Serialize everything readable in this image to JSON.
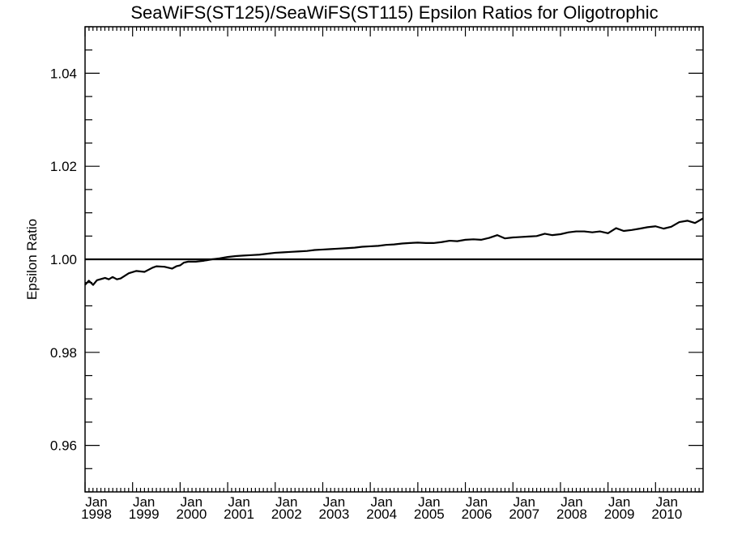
{
  "chart_data": {
    "type": "line",
    "title": "SeaWiFS(ST125)/SeaWiFS(ST115)  Epsilon Ratios for Oligotrophic",
    "xlabel": "",
    "ylabel": "Epsilon Ratio",
    "xlim": [
      1998.0,
      2011.0
    ],
    "ylim": [
      0.95,
      1.05
    ],
    "y_ticks": [
      0.96,
      0.98,
      1.0,
      1.02,
      1.04
    ],
    "y_tick_labels": [
      "0.96",
      "0.98",
      "1.00",
      "1.02",
      "1.04"
    ],
    "x_ticks": [
      1998,
      1999,
      2000,
      2001,
      2002,
      2003,
      2004,
      2005,
      2006,
      2007,
      2008,
      2009,
      2010
    ],
    "x_tick_labels": [
      [
        "Jan",
        "1998"
      ],
      [
        "Jan",
        "1999"
      ],
      [
        "Jan",
        "2000"
      ],
      [
        "Jan",
        "2001"
      ],
      [
        "Jan",
        "2002"
      ],
      [
        "Jan",
        "2003"
      ],
      [
        "Jan",
        "2004"
      ],
      [
        "Jan",
        "2005"
      ],
      [
        "Jan",
        "2006"
      ],
      [
        "Jan",
        "2007"
      ],
      [
        "Jan",
        "2008"
      ],
      [
        "Jan",
        "2009"
      ],
      [
        "Jan",
        "2010"
      ]
    ],
    "reference_line": 1.0,
    "grid": false,
    "series": [
      {
        "x": [
          1998.0,
          1998.08,
          1998.17,
          1998.25,
          1998.42,
          1998.5,
          1998.58,
          1998.67,
          1998.75,
          1998.92,
          1999.08,
          1999.25,
          1999.42,
          1999.5,
          1999.67,
          1999.83,
          1999.92,
          2000.0,
          2000.08,
          2000.17,
          2000.33,
          2000.5,
          2000.67,
          2000.83,
          2001.0,
          2001.17,
          2001.33,
          2001.5,
          2001.67,
          2001.83,
          2002.0,
          2002.17,
          2002.33,
          2002.5,
          2002.67,
          2002.83,
          2003.0,
          2003.17,
          2003.33,
          2003.5,
          2003.67,
          2003.83,
          2004.0,
          2004.17,
          2004.33,
          2004.5,
          2004.67,
          2004.83,
          2005.0,
          2005.17,
          2005.33,
          2005.5,
          2005.67,
          2005.83,
          2006.0,
          2006.17,
          2006.33,
          2006.5,
          2006.67,
          2006.83,
          2007.0,
          2007.17,
          2007.33,
          2007.5,
          2007.67,
          2007.83,
          2008.0,
          2008.17,
          2008.33,
          2008.5,
          2008.67,
          2008.83,
          2009.0,
          2009.17,
          2009.33,
          2009.5,
          2009.67,
          2009.83,
          2010.0,
          2010.17,
          2010.33,
          2010.5,
          2010.67,
          2010.83,
          2011.0
        ],
        "values": [
          0.9945,
          0.9954,
          0.9945,
          0.9955,
          0.996,
          0.9957,
          0.9962,
          0.9957,
          0.9959,
          0.997,
          0.9975,
          0.9973,
          0.9982,
          0.9985,
          0.9984,
          0.998,
          0.9985,
          0.9987,
          0.9993,
          0.9995,
          0.9995,
          0.9997,
          1.0,
          1.0002,
          1.0005,
          1.0007,
          1.0008,
          1.0009,
          1.001,
          1.0012,
          1.0014,
          1.0015,
          1.0016,
          1.0017,
          1.0018,
          1.002,
          1.0021,
          1.0022,
          1.0023,
          1.0024,
          1.0025,
          1.0027,
          1.0028,
          1.0029,
          1.0031,
          1.0032,
          1.0034,
          1.0035,
          1.0036,
          1.0035,
          1.0035,
          1.0037,
          1.004,
          1.0039,
          1.0042,
          1.0043,
          1.0042,
          1.0046,
          1.0052,
          1.0045,
          1.0047,
          1.0048,
          1.0049,
          1.005,
          1.0055,
          1.0052,
          1.0054,
          1.0058,
          1.006,
          1.006,
          1.0058,
          1.006,
          1.0056,
          1.0067,
          1.0061,
          1.0063,
          1.0066,
          1.0069,
          1.0071,
          1.0066,
          1.007,
          1.008,
          1.0083,
          1.0078,
          1.0088
        ]
      }
    ]
  }
}
